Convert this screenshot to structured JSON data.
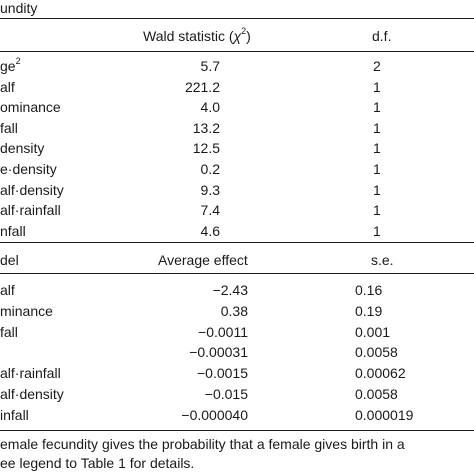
{
  "caption_top": "undity",
  "fixed_effects": {
    "headers": {
      "term": "",
      "wald": "Wald statistic (χ²)",
      "df": "d.f."
    },
    "rows": [
      {
        "term": "ge²",
        "wald": "5.7",
        "df": "2"
      },
      {
        "term": "alf",
        "wald": "221.2",
        "df": "1"
      },
      {
        "term": "ominance",
        "wald": "4.0",
        "df": "1"
      },
      {
        "term": "fall",
        "wald": "13.2",
        "df": "1"
      },
      {
        "term": "density",
        "wald": "12.5",
        "df": "1"
      },
      {
        "term": "e·density",
        "wald": "0.2",
        "df": "1"
      },
      {
        "term": "alf·density",
        "wald": "9.3",
        "df": "1"
      },
      {
        "term": "alf·rainfall",
        "wald": "7.4",
        "df": "1"
      },
      {
        "term": "nfall",
        "wald": "4.6",
        "df": "1"
      }
    ]
  },
  "model_effects": {
    "headers": {
      "term": "del",
      "avg": "Average effect",
      "se": "s.e."
    },
    "rows": [
      {
        "term": "alf",
        "avg": "−2.43",
        "se": "0.16"
      },
      {
        "term": "minance",
        "avg": "0.38",
        "se": "0.19"
      },
      {
        "term": "fall",
        "avg": "−0.0011",
        "se": "0.001"
      },
      {
        "term": "",
        "avg": "−0.00031",
        "se": "0.0058"
      },
      {
        "term": "alf·rainfall",
        "avg": "−0.0015",
        "se": "0.00062"
      },
      {
        "term": "alf·density",
        "avg": "−0.015",
        "se": "0.0058"
      },
      {
        "term": "infall",
        "avg": "−0.000040",
        "se": "0.000019"
      }
    ]
  },
  "footnote": [
    "emale fecundity gives the probability that a female gives birth in a",
    "ee legend to Table 1 for details."
  ]
}
